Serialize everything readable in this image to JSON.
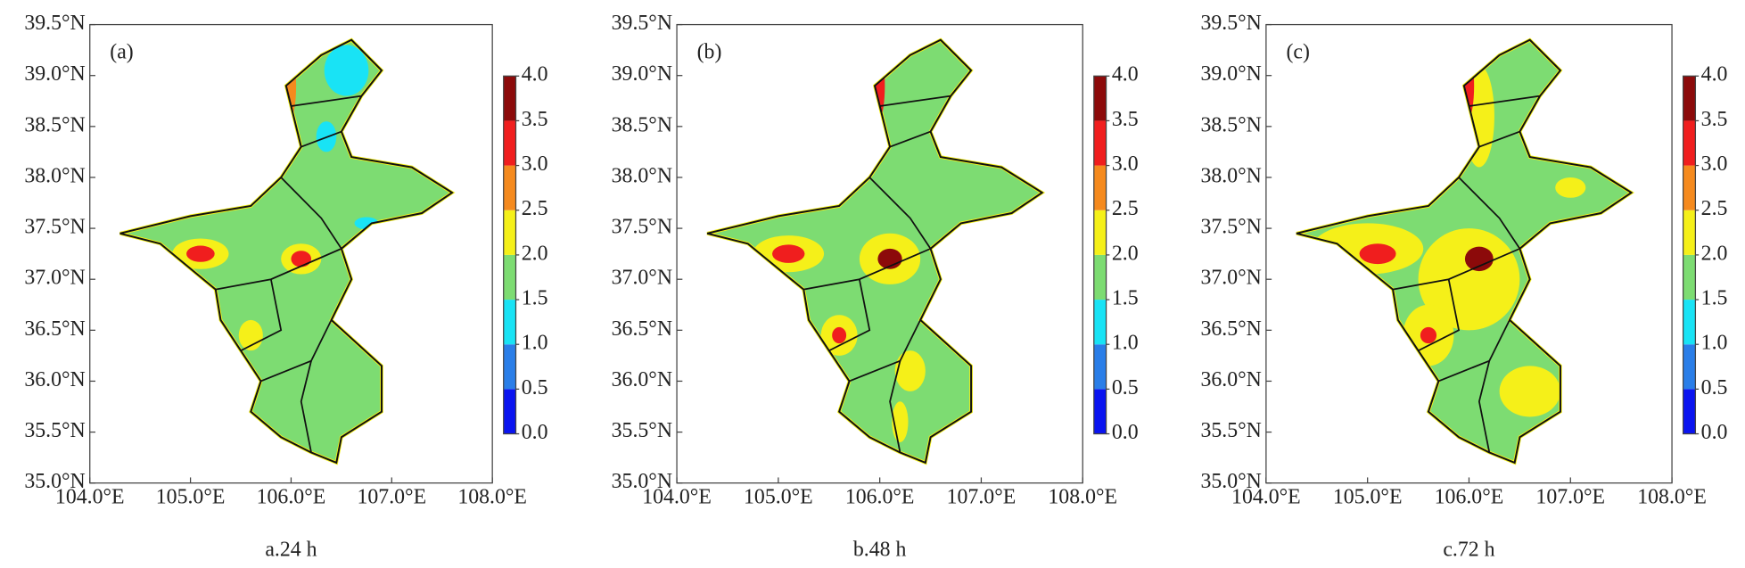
{
  "chart_data": [
    {
      "type": "contour-map",
      "panel_label": "(a)",
      "caption": "a.24 h",
      "xlim": [
        104,
        108
      ],
      "xticks": [
        {
          "value": 104,
          "label": "104.0°E"
        },
        {
          "value": 105,
          "label": "105.0°E"
        },
        {
          "value": 106,
          "label": "106.0°E"
        },
        {
          "value": 107,
          "label": "107.0°E"
        },
        {
          "value": 108,
          "label": "108.0°E"
        }
      ],
      "ylim": [
        35,
        39.5
      ],
      "yticks": [
        {
          "value": 35,
          "label": "35.0°N"
        },
        {
          "value": 35.5,
          "label": "35.5°N"
        },
        {
          "value": 36,
          "label": "36.0°N"
        },
        {
          "value": 36.5,
          "label": "36.5°N"
        },
        {
          "value": 37,
          "label": "37.0°N"
        },
        {
          "value": 37.5,
          "label": "37.5°N"
        },
        {
          "value": 38,
          "label": "38.0°N"
        },
        {
          "value": 38.5,
          "label": "38.5°N"
        },
        {
          "value": 39,
          "label": "39.0°N"
        },
        {
          "value": 39.5,
          "label": "39.5°N"
        }
      ],
      "colorbar_ticks": [
        {
          "value": 0,
          "label": "0.0"
        },
        {
          "value": 0.5,
          "label": "0.5"
        },
        {
          "value": 1,
          "label": "1.0"
        },
        {
          "value": 1.5,
          "label": "1.5"
        },
        {
          "value": 2,
          "label": "2.0"
        },
        {
          "value": 2.5,
          "label": "2.5"
        },
        {
          "value": 3,
          "label": "3.0"
        },
        {
          "value": 3.5,
          "label": "3.5"
        },
        {
          "value": 4,
          "label": "4.0"
        }
      ],
      "colorbar_colors": [
        "#0a14f0",
        "#2a7ee8",
        "#19e3f5",
        "#7ddc72",
        "#f5f019",
        "#f58a1e",
        "#f01e1e",
        "#8c0a0a"
      ]
    },
    {
      "type": "contour-map",
      "panel_label": "(b)",
      "caption": "b.48 h",
      "xlim": [
        104,
        108
      ],
      "xticks": [
        {
          "value": 104,
          "label": "104.0°E"
        },
        {
          "value": 105,
          "label": "105.0°E"
        },
        {
          "value": 106,
          "label": "106.0°E"
        },
        {
          "value": 107,
          "label": "107.0°E"
        },
        {
          "value": 108,
          "label": "108.0°E"
        }
      ],
      "ylim": [
        35,
        39.5
      ],
      "yticks": [
        {
          "value": 35,
          "label": "35.0°N"
        },
        {
          "value": 35.5,
          "label": "35.5°N"
        },
        {
          "value": 36,
          "label": "36.0°N"
        },
        {
          "value": 36.5,
          "label": "36.5°N"
        },
        {
          "value": 37,
          "label": "37.0°N"
        },
        {
          "value": 37.5,
          "label": "37.5°N"
        },
        {
          "value": 38,
          "label": "38.0°N"
        },
        {
          "value": 38.5,
          "label": "38.5°N"
        },
        {
          "value": 39,
          "label": "39.0°N"
        },
        {
          "value": 39.5,
          "label": "39.5°N"
        }
      ],
      "colorbar_ticks": [
        {
          "value": 0,
          "label": "0.0"
        },
        {
          "value": 0.5,
          "label": "0.5"
        },
        {
          "value": 1,
          "label": "1.0"
        },
        {
          "value": 1.5,
          "label": "1.5"
        },
        {
          "value": 2,
          "label": "2.0"
        },
        {
          "value": 2.5,
          "label": "2.5"
        },
        {
          "value": 3,
          "label": "3.0"
        },
        {
          "value": 3.5,
          "label": "3.5"
        },
        {
          "value": 4,
          "label": "4.0"
        }
      ],
      "colorbar_colors": [
        "#0a14f0",
        "#2a7ee8",
        "#19e3f5",
        "#7ddc72",
        "#f5f019",
        "#f58a1e",
        "#f01e1e",
        "#8c0a0a"
      ]
    },
    {
      "type": "contour-map",
      "panel_label": "(c)",
      "caption": "c.72 h",
      "xlim": [
        104,
        108
      ],
      "xticks": [
        {
          "value": 104,
          "label": "104.0°E"
        },
        {
          "value": 105,
          "label": "105.0°E"
        },
        {
          "value": 106,
          "label": "106.0°E"
        },
        {
          "value": 107,
          "label": "107.0°E"
        },
        {
          "value": 108,
          "label": "108.0°E"
        }
      ],
      "ylim": [
        35,
        39.5
      ],
      "yticks": [
        {
          "value": 35,
          "label": "35.0°N"
        },
        {
          "value": 35.5,
          "label": "35.5°N"
        },
        {
          "value": 36,
          "label": "36.0°N"
        },
        {
          "value": 36.5,
          "label": "36.5°N"
        },
        {
          "value": 37,
          "label": "37.0°N"
        },
        {
          "value": 37.5,
          "label": "37.5°N"
        },
        {
          "value": 38,
          "label": "38.0°N"
        },
        {
          "value": 38.5,
          "label": "38.5°N"
        },
        {
          "value": 39,
          "label": "39.0°N"
        },
        {
          "value": 39.5,
          "label": "39.5°N"
        }
      ],
      "colorbar_ticks": [
        {
          "value": 0,
          "label": "0.0"
        },
        {
          "value": 0.5,
          "label": "0.5"
        },
        {
          "value": 1,
          "label": "1.0"
        },
        {
          "value": 1.5,
          "label": "1.5"
        },
        {
          "value": 2,
          "label": "2.0"
        },
        {
          "value": 2.5,
          "label": "2.5"
        },
        {
          "value": 3,
          "label": "3.0"
        },
        {
          "value": 3.5,
          "label": "3.5"
        },
        {
          "value": 4,
          "label": "4.0"
        }
      ],
      "colorbar_colors": [
        "#0a14f0",
        "#2a7ee8",
        "#19e3f5",
        "#7ddc72",
        "#f5f019",
        "#f58a1e",
        "#f01e1e",
        "#8c0a0a"
      ]
    }
  ]
}
